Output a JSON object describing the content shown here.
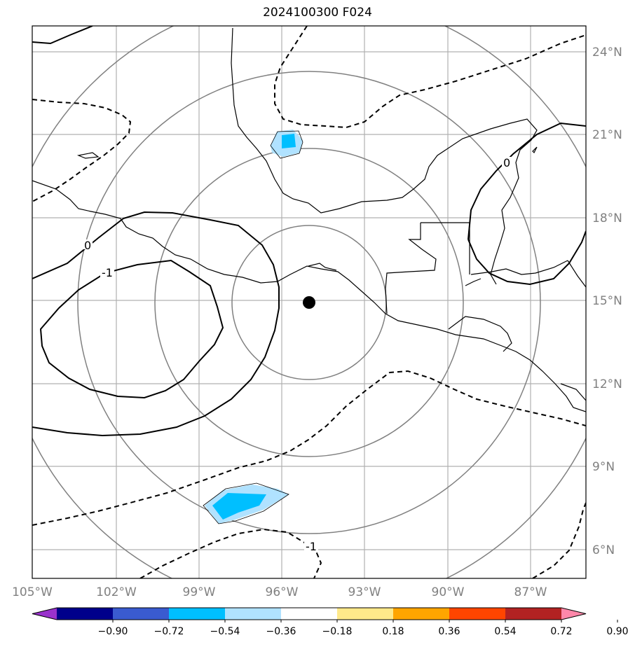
{
  "title": "2024100300 F024",
  "map": {
    "center_lon": -95.0,
    "center_lat": 15.0,
    "lon_range": [
      -105,
      -85
    ],
    "lat_range": [
      5,
      25
    ],
    "lon_ticks": [
      "105°W",
      "102°W",
      "99°W",
      "96°W",
      "93°W",
      "90°W",
      "87°W"
    ],
    "lat_ticks": [
      "6°N",
      "9°N",
      "12°N",
      "15°N",
      "18°N",
      "21°N",
      "24°N"
    ],
    "contour_labels": [
      "0",
      "-1",
      "0",
      "-1"
    ]
  },
  "colorbar": {
    "ticks": [
      "−0.90",
      "−0.72",
      "−0.54",
      "−0.36",
      "−0.18",
      "0.18",
      "0.36",
      "0.54",
      "0.72",
      "0.90"
    ],
    "colors": [
      "#9932cc",
      "#00008b",
      "#3a5bd0",
      "#00bfff",
      "#b0e2ff",
      "#ffffff",
      "#ffe98a",
      "#ffa500",
      "#ff4500",
      "#b22222",
      "#ff88aa"
    ]
  }
}
